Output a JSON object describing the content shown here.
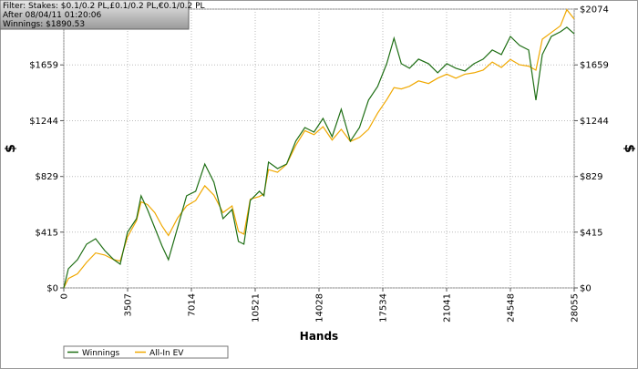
{
  "chart_data": {
    "type": "line",
    "info": [
      "Filter: Stakes: $0.1/0.2 PL,£0.1/0.2 PL,€0.1/0.2 PL",
      "After 08/04/11 01:20:06",
      "Winnings: $1890.53"
    ],
    "x_label": "Hands",
    "y_label": "$",
    "y2_label": "$",
    "xlim": [
      0,
      28055
    ],
    "xticks": [
      0,
      3507,
      7014,
      10521,
      14028,
      17534,
      21041,
      24548,
      28055
    ],
    "ylim": [
      0,
      2074
    ],
    "yticks": [
      {
        "value": 0,
        "label": "$0"
      },
      {
        "value": 415,
        "label": "$415"
      },
      {
        "value": 829,
        "label": "$829"
      },
      {
        "value": 1244,
        "label": "$1244"
      },
      {
        "value": 1659,
        "label": "$1659"
      },
      {
        "value": 2074,
        "label": "$2074"
      }
    ],
    "y2lim": [
      0,
      2074
    ],
    "y2ticks": [
      {
        "value": 0,
        "label": "$0"
      },
      {
        "value": 415,
        "label": "$415"
      },
      {
        "value": 829,
        "label": "$829"
      },
      {
        "value": 1244,
        "label": "$1244"
      },
      {
        "value": 1659,
        "label": "$1659"
      },
      {
        "value": 2074,
        "label": "$2074"
      }
    ],
    "grid": true,
    "legend": "bottom-left",
    "x": [
      0,
      250,
      750,
      1250,
      1750,
      2250,
      2750,
      3100,
      3500,
      4000,
      4250,
      4600,
      5000,
      5400,
      5750,
      6250,
      6750,
      7250,
      7750,
      8250,
      8750,
      9250,
      9600,
      9900,
      10250,
      10750,
      11000,
      11250,
      11750,
      12250,
      12750,
      13250,
      13750,
      14250,
      14750,
      15250,
      15750,
      16250,
      16750,
      17250,
      17750,
      18150,
      18550,
      19000,
      19500,
      20050,
      20550,
      21050,
      21550,
      22050,
      22550,
      23050,
      23550,
      24050,
      24550,
      25050,
      25550,
      25950,
      26300,
      26800,
      27300,
      27650,
      28055
    ],
    "series": [
      {
        "name": "Winnings",
        "color": "#1e6e14",
        "values": [
          0,
          142,
          210,
          325,
          366,
          278,
          210,
          176,
          414,
          515,
          685,
          583,
          447,
          312,
          210,
          447,
          685,
          719,
          922,
          786,
          515,
          583,
          346,
          325,
          651,
          719,
          685,
          936,
          888,
          922,
          1092,
          1193,
          1159,
          1261,
          1125,
          1329,
          1092,
          1193,
          1397,
          1498,
          1668,
          1858,
          1668,
          1634,
          1702,
          1668,
          1600,
          1668,
          1634,
          1614,
          1668,
          1702,
          1770,
          1736,
          1871,
          1804,
          1770,
          1397,
          1736,
          1871,
          1905,
          1939,
          1890
        ]
      },
      {
        "name": "All-In EV",
        "color": "#f0a800",
        "values": [
          0,
          70,
          105,
          190,
          260,
          245,
          210,
          200,
          380,
          500,
          640,
          620,
          560,
          460,
          390,
          520,
          610,
          650,
          760,
          690,
          560,
          610,
          420,
          400,
          660,
          680,
          700,
          880,
          860,
          920,
          1060,
          1170,
          1140,
          1200,
          1100,
          1180,
          1090,
          1120,
          1180,
          1300,
          1400,
          1490,
          1480,
          1500,
          1540,
          1520,
          1560,
          1590,
          1560,
          1590,
          1600,
          1620,
          1680,
          1640,
          1700,
          1660,
          1650,
          1620,
          1850,
          1900,
          1950,
          2070,
          2000
        ]
      }
    ]
  }
}
